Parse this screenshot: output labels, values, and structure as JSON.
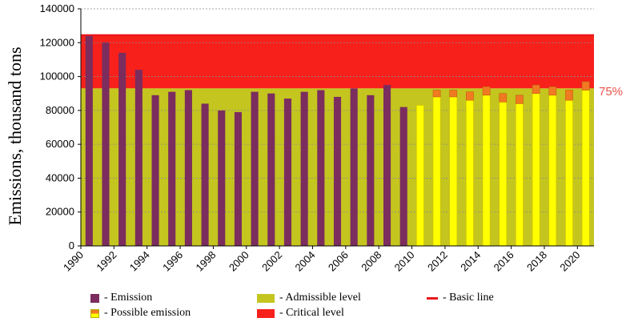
{
  "chart_data": {
    "type": "bar",
    "ylabel": "Emissions, thousand tons",
    "ylim": [
      0,
      140000
    ],
    "yticks": [
      "0",
      "20000",
      "40000",
      "60000",
      "80000",
      "100000",
      "120000",
      "140000"
    ],
    "xticks": [
      "1990",
      "1992",
      "1994",
      "1996",
      "1998",
      "2000",
      "2002",
      "2004",
      "2006",
      "2008",
      "2010",
      "2012",
      "2014",
      "2016",
      "2018",
      "2020"
    ],
    "years": [
      1990,
      1991,
      1992,
      1993,
      1994,
      1995,
      1996,
      1997,
      1998,
      1999,
      2000,
      2001,
      2002,
      2003,
      2004,
      2005,
      2006,
      2007,
      2008,
      2009,
      2010,
      2011,
      2012,
      2013,
      2014,
      2015,
      2016,
      2017,
      2018,
      2019,
      2020
    ],
    "emission": [
      124000,
      120000,
      114000,
      104000,
      89000,
      91000,
      92000,
      84000,
      80000,
      79000,
      91000,
      90000,
      87000,
      91000,
      92000,
      88000,
      93000,
      89000,
      95000,
      82000,
      null,
      null,
      null,
      null,
      null,
      null,
      null,
      null,
      null,
      null,
      null
    ],
    "possible_emission_low": [
      null,
      null,
      null,
      null,
      null,
      null,
      null,
      null,
      null,
      null,
      null,
      null,
      null,
      null,
      null,
      null,
      null,
      null,
      null,
      null,
      83000,
      88000,
      88000,
      86000,
      89000,
      85000,
      84000,
      90000,
      89000,
      86000,
      92000
    ],
    "possible_emission_high": [
      null,
      null,
      null,
      null,
      null,
      null,
      null,
      null,
      null,
      null,
      null,
      null,
      null,
      null,
      null,
      null,
      null,
      null,
      null,
      null,
      83000,
      92000,
      92000,
      91000,
      94000,
      90000,
      89000,
      95000,
      94000,
      92000,
      97000
    ],
    "admissible_level": 93000,
    "critical_level": 124500,
    "basic_line": 124500,
    "annotation": "75%",
    "grid": true,
    "legend": [
      {
        "label": "- Emission",
        "color": "#7b2d5e"
      },
      {
        "label": "- Possible emission",
        "color": "#f5e11a"
      },
      {
        "label": "- Admissible level",
        "color": "#c4c51f"
      },
      {
        "label": "- Critical level",
        "color": "#f7201b"
      },
      {
        "label": "- Basic line",
        "color": "#e8161b"
      }
    ],
    "colors": {
      "emission": "#7b2d5e",
      "possible_low": "#ffff00",
      "possible_high": "#f07a22",
      "admissible": "#c4c51f",
      "critical": "#f7201b",
      "basic_line": "#e8161b",
      "annotation": "#e8534a"
    }
  }
}
